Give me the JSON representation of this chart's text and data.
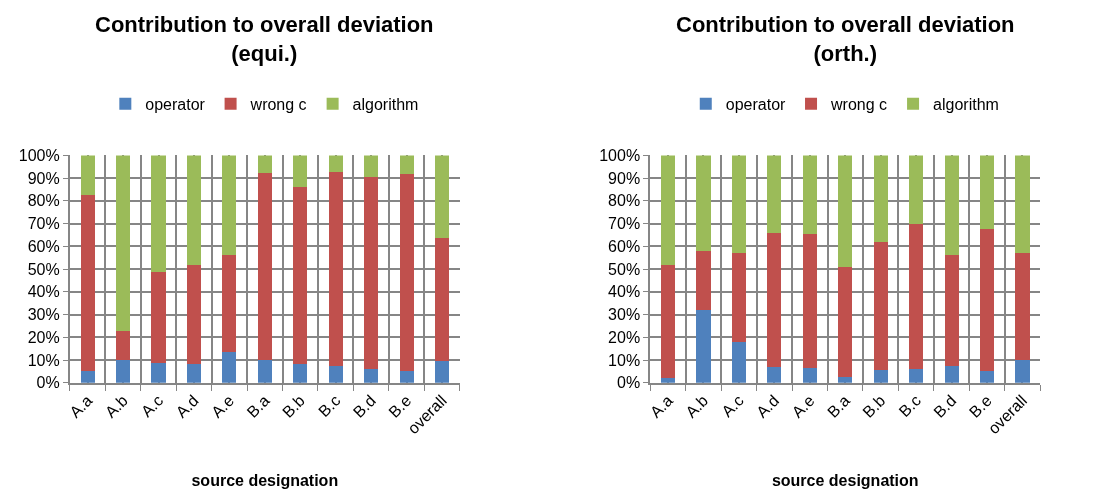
{
  "chart_data": [
    {
      "type": "bar",
      "stacked": true,
      "title": "Contribution to overall deviation\n(equi.)",
      "xlabel": "source designation",
      "legend": "top",
      "grid": true,
      "categories": [
        "A.a",
        "A.b",
        "A.c",
        "A.d",
        "A.e",
        "B.a",
        "B.b",
        "B.c",
        "B.d",
        "B.e",
        "overall"
      ],
      "ylim": [
        0,
        100
      ],
      "yticks": [
        {
          "value": 0,
          "label": "0%"
        },
        {
          "value": 10,
          "label": "10%"
        },
        {
          "value": 20,
          "label": "20%"
        },
        {
          "value": 30,
          "label": "30%"
        },
        {
          "value": 40,
          "label": "40%"
        },
        {
          "value": 50,
          "label": "50%"
        },
        {
          "value": 60,
          "label": "60%"
        },
        {
          "value": 70,
          "label": "70%"
        },
        {
          "value": 80,
          "label": "80%"
        },
        {
          "value": 90,
          "label": "90%"
        },
        {
          "value": 100,
          "label": "100%"
        }
      ],
      "series": [
        {
          "name": "operator",
          "color": "#4f81bd",
          "values": [
            5.1,
            9.9,
            8.7,
            8.4,
            13.7,
            9.9,
            8.4,
            7.5,
            6.2,
            5.4,
            9.5
          ]
        },
        {
          "name": "wrong c",
          "color": "#c0504d",
          "values": [
            77.3,
            12.9,
            40.1,
            43.4,
            42.5,
            82.2,
            77.9,
            85.3,
            84.2,
            86.5,
            54.0
          ]
        },
        {
          "name": "algorithm",
          "color": "#9bbb59",
          "values": [
            17.6,
            77.2,
            51.2,
            48.2,
            43.8,
            7.9,
            13.7,
            7.2,
            9.6,
            8.1,
            36.5
          ]
        }
      ]
    },
    {
      "type": "bar",
      "stacked": true,
      "title": "Contribution to overall deviation\n(orth.)",
      "xlabel": "source designation",
      "legend": "top",
      "grid": true,
      "categories": [
        "A.a",
        "A.b",
        "A.c",
        "A.d",
        "A.e",
        "B.a",
        "B.b",
        "B.c",
        "B.d",
        "B.e",
        "overall"
      ],
      "ylim": [
        0,
        100
      ],
      "yticks": [
        {
          "value": 0,
          "label": "0%"
        },
        {
          "value": 10,
          "label": "10%"
        },
        {
          "value": 20,
          "label": "20%"
        },
        {
          "value": 30,
          "label": "30%"
        },
        {
          "value": 40,
          "label": "40%"
        },
        {
          "value": 50,
          "label": "50%"
        },
        {
          "value": 60,
          "label": "60%"
        },
        {
          "value": 70,
          "label": "70%"
        },
        {
          "value": 80,
          "label": "80%"
        },
        {
          "value": 90,
          "label": "90%"
        },
        {
          "value": 100,
          "label": "100%"
        }
      ],
      "series": [
        {
          "name": "operator",
          "color": "#4f81bd",
          "values": [
            2.1,
            32.2,
            17.9,
            6.8,
            6.6,
            2.5,
            5.7,
            6.0,
            7.5,
            5.4,
            10.0
          ]
        },
        {
          "name": "wrong c",
          "color": "#c0504d",
          "values": [
            49.5,
            25.9,
            39.3,
            58.9,
            59.0,
            48.4,
            56.1,
            63.9,
            48.8,
            62.4,
            47.0
          ]
        },
        {
          "name": "algorithm",
          "color": "#9bbb59",
          "values": [
            48.4,
            41.9,
            42.8,
            34.3,
            34.4,
            49.1,
            38.2,
            30.1,
            43.7,
            32.2,
            43.0
          ]
        }
      ]
    }
  ]
}
